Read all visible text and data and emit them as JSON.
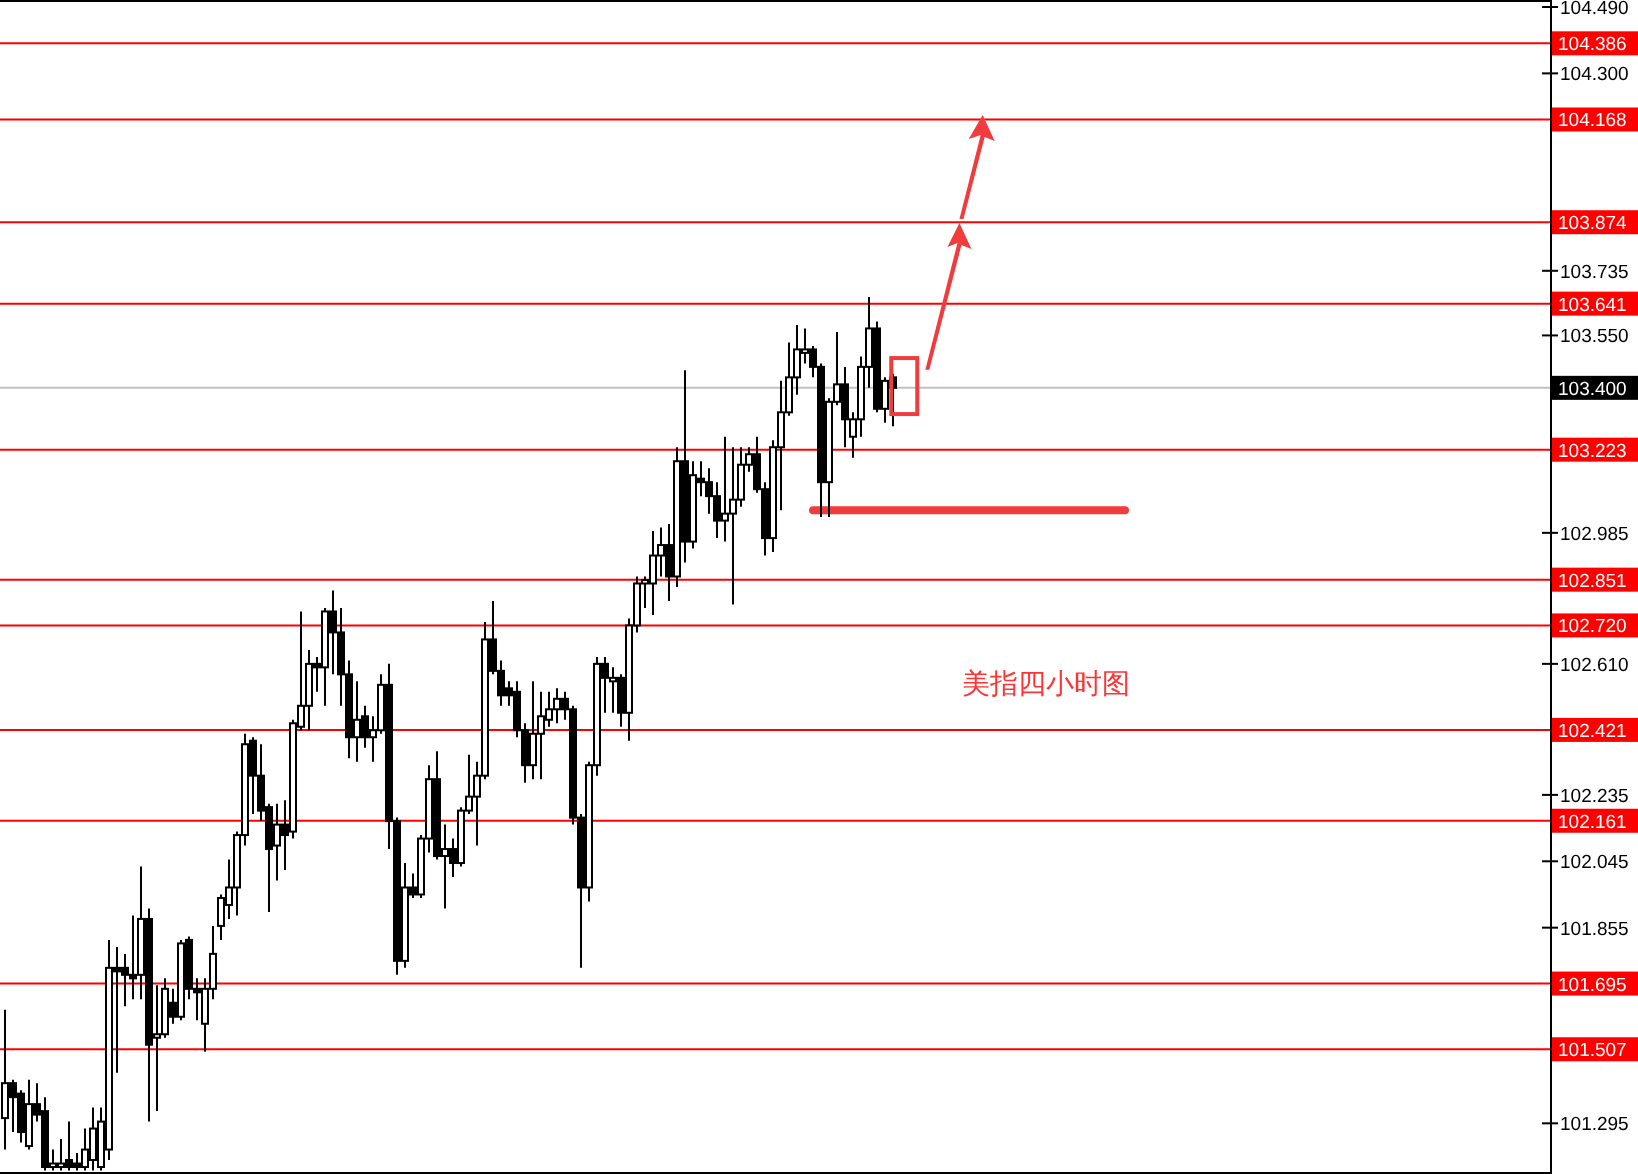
{
  "chart_data": {
    "type": "candlestick",
    "categories": [
      null,
      null,
      null,
      null,
      null,
      null,
      null,
      null,
      null,
      null,
      null,
      null,
      null,
      null,
      null,
      null,
      null,
      null,
      null,
      null,
      null,
      null,
      null,
      null,
      null,
      null,
      null,
      null,
      null,
      null,
      null,
      null,
      null,
      null,
      null,
      null,
      null,
      null,
      null,
      null,
      null,
      null,
      null,
      null,
      null,
      null,
      null,
      null,
      null,
      null,
      null,
      null,
      null,
      null,
      null,
      null,
      null,
      null,
      null,
      null,
      null,
      null,
      null,
      null,
      null,
      null,
      null,
      null,
      null,
      null,
      null,
      null,
      null,
      null,
      null,
      null,
      null,
      null,
      null,
      null,
      null,
      null,
      null,
      null,
      null,
      null,
      null,
      null,
      null,
      null,
      null,
      null,
      null,
      null,
      null,
      null,
      null,
      null,
      null,
      null,
      null,
      null,
      null,
      null,
      null,
      null,
      null,
      null,
      null,
      null,
      null,
      null,
      null,
      null,
      null,
      null,
      null,
      null,
      null,
      null,
      null,
      null,
      null,
      null,
      null,
      null,
      null,
      null,
      null,
      null,
      null,
      null,
      null,
      null,
      null,
      null,
      null,
      null,
      null,
      null,
      null
    ],
    "series": [
      {
        "type": "line",
        "color": "#f03c3c",
        "values": [
          null,
          null,
          null,
          null,
          null,
          null,
          null,
          null,
          null,
          null,
          null,
          null,
          null,
          null,
          null,
          null,
          null,
          null,
          null,
          null,
          null,
          null,
          null,
          null,
          null,
          null,
          null,
          null,
          null,
          null,
          null,
          null,
          null,
          null,
          null,
          null,
          null,
          null,
          null,
          null,
          null,
          null,
          null,
          null,
          null,
          null,
          null,
          null,
          null,
          null,
          null,
          null,
          null,
          null,
          null,
          null,
          null,
          null,
          null,
          null,
          null,
          null,
          null,
          null,
          null,
          null,
          null,
          null,
          null,
          null,
          null,
          null,
          null,
          null,
          null,
          null,
          null,
          null,
          null,
          null,
          null,
          null,
          null,
          null,
          null,
          null,
          null,
          null,
          null,
          null,
          null,
          null,
          null,
          null,
          null,
          null,
          null,
          null,
          null,
          null,
          null,
          103.05,
          103.05,
          103.05,
          103.05,
          103.05,
          103.05,
          103.05,
          103.05,
          103.05,
          103.05,
          103.05,
          103.05,
          103.05,
          103.05,
          103.05,
          103.05,
          103.05,
          103.05,
          103.05,
          103.05,
          103.05,
          103.05,
          103.05,
          103.05,
          103.05,
          103.05,
          103.05,
          103.05,
          103.05,
          103.05,
          103.05,
          103.05,
          103.05,
          103.05,
          103.05,
          103.05,
          103.05,
          103.05,
          103.05,
          103.05
        ]
      }
    ],
    "ohlc": [
      [
        101.31,
        101.62,
        101.22,
        101.41
      ],
      [
        101.41,
        101.42,
        101.27,
        101.37
      ],
      [
        101.38,
        101.39,
        101.24,
        101.27
      ],
      [
        101.23,
        101.42,
        101.22,
        101.35
      ],
      [
        101.35,
        101.41,
        101.3,
        101.32
      ],
      [
        101.33,
        101.37,
        101.16,
        101.17
      ],
      [
        101.17,
        101.22,
        101.16,
        101.18
      ],
      [
        101.17,
        101.25,
        101.16,
        101.18
      ],
      [
        101.19,
        101.3,
        101.16,
        101.17
      ],
      [
        101.18,
        101.21,
        101.16,
        101.17
      ],
      [
        101.17,
        101.28,
        101.16,
        101.22
      ],
      [
        101.19,
        101.34,
        101.16,
        101.28
      ],
      [
        101.17,
        101.34,
        101.16,
        101.3
      ],
      [
        101.22,
        101.82,
        101.19,
        101.74
      ],
      [
        101.74,
        101.8,
        101.44,
        101.73
      ],
      [
        101.74,
        101.78,
        101.63,
        101.72
      ],
      [
        101.72,
        101.89,
        101.65,
        101.71
      ],
      [
        101.72,
        102.03,
        101.65,
        101.88
      ],
      [
        101.88,
        101.91,
        101.3,
        101.52
      ],
      [
        101.54,
        101.69,
        101.33,
        101.55
      ],
      [
        101.55,
        101.71,
        101.54,
        101.68
      ],
      [
        101.64,
        101.68,
        101.58,
        101.6
      ],
      [
        101.6,
        101.82,
        101.59,
        101.81
      ],
      [
        101.82,
        101.83,
        101.65,
        101.68
      ],
      [
        101.68,
        101.71,
        101.59,
        101.67
      ],
      [
        101.58,
        101.71,
        101.5,
        101.68
      ],
      [
        101.68,
        101.86,
        101.65,
        101.78
      ],
      [
        101.86,
        101.95,
        101.82,
        101.94
      ],
      [
        101.92,
        102.05,
        101.88,
        101.97
      ],
      [
        101.97,
        102.13,
        101.89,
        102.12
      ],
      [
        102.12,
        102.41,
        102.09,
        102.38
      ],
      [
        102.39,
        102.4,
        102.18,
        102.29
      ],
      [
        102.29,
        102.38,
        102.16,
        102.19
      ],
      [
        102.2,
        102.21,
        101.9,
        102.08
      ],
      [
        102.09,
        102.21,
        101.99,
        102.15
      ],
      [
        102.15,
        102.22,
        102.02,
        102.12
      ],
      [
        102.13,
        102.45,
        102.11,
        102.44
      ],
      [
        102.43,
        102.76,
        102.42,
        102.49
      ],
      [
        102.49,
        102.65,
        102.42,
        102.61
      ],
      [
        102.61,
        102.63,
        102.53,
        102.6
      ],
      [
        102.6,
        102.77,
        102.49,
        102.76
      ],
      [
        102.76,
        102.82,
        102.58,
        102.7
      ],
      [
        102.7,
        102.77,
        102.49,
        102.58
      ],
      [
        102.58,
        102.62,
        102.34,
        102.4
      ],
      [
        102.4,
        102.56,
        102.33,
        102.45
      ],
      [
        102.46,
        102.49,
        102.37,
        102.4
      ],
      [
        102.4,
        102.46,
        102.33,
        102.42
      ],
      [
        102.42,
        102.58,
        102.41,
        102.55
      ],
      [
        102.55,
        102.61,
        102.08,
        102.16
      ],
      [
        102.16,
        102.17,
        101.72,
        101.76
      ],
      [
        101.76,
        102.04,
        101.74,
        101.97
      ],
      [
        101.97,
        102.01,
        101.94,
        101.95
      ],
      [
        101.95,
        102.12,
        101.94,
        102.11
      ],
      [
        102.11,
        102.32,
        102.07,
        102.28
      ],
      [
        102.28,
        102.36,
        102.05,
        102.06
      ],
      [
        102.06,
        102.15,
        101.91,
        102.08
      ],
      [
        102.08,
        102.11,
        102.0,
        102.04
      ],
      [
        102.04,
        102.2,
        102.03,
        102.19
      ],
      [
        102.19,
        102.35,
        102.18,
        102.23
      ],
      [
        102.23,
        102.33,
        102.09,
        102.29
      ],
      [
        102.29,
        102.73,
        102.28,
        102.68
      ],
      [
        102.68,
        102.79,
        102.58,
        102.59
      ],
      [
        102.59,
        102.62,
        102.49,
        102.52
      ],
      [
        102.54,
        102.56,
        102.49,
        102.52
      ],
      [
        102.53,
        102.56,
        102.4,
        102.42
      ],
      [
        102.42,
        102.44,
        102.27,
        102.32
      ],
      [
        102.32,
        102.56,
        102.28,
        102.41
      ],
      [
        102.41,
        102.53,
        102.28,
        102.46
      ],
      [
        102.45,
        102.53,
        102.43,
        102.48
      ],
      [
        102.48,
        102.54,
        102.44,
        102.51
      ],
      [
        102.51,
        102.53,
        102.45,
        102.48
      ],
      [
        102.48,
        102.49,
        102.15,
        102.17
      ],
      [
        102.17,
        102.18,
        101.74,
        101.97
      ],
      [
        101.97,
        102.33,
        101.93,
        102.32
      ],
      [
        102.32,
        102.63,
        102.29,
        102.61
      ],
      [
        102.61,
        102.63,
        102.47,
        102.57
      ],
      [
        102.56,
        102.6,
        102.47,
        102.57
      ],
      [
        102.57,
        102.58,
        102.43,
        102.47
      ],
      [
        102.47,
        102.74,
        102.39,
        102.72
      ],
      [
        102.72,
        102.86,
        102.7,
        102.84
      ],
      [
        102.84,
        102.86,
        102.77,
        102.85
      ],
      [
        102.84,
        102.99,
        102.75,
        102.92
      ],
      [
        102.92,
        103.0,
        102.86,
        102.95
      ],
      [
        102.95,
        103.01,
        102.79,
        102.86
      ],
      [
        102.86,
        103.23,
        102.83,
        103.19
      ],
      [
        103.19,
        103.45,
        102.9,
        102.96
      ],
      [
        102.96,
        103.19,
        102.94,
        103.15
      ],
      [
        103.14,
        103.19,
        103.09,
        103.13
      ],
      [
        103.13,
        103.17,
        103.04,
        103.09
      ],
      [
        103.09,
        103.13,
        102.97,
        103.02
      ],
      [
        103.02,
        103.26,
        102.96,
        103.04
      ],
      [
        103.04,
        103.23,
        102.78,
        103.08
      ],
      [
        103.08,
        103.23,
        103.06,
        103.18
      ],
      [
        103.18,
        103.23,
        103.16,
        103.21
      ],
      [
        103.21,
        103.26,
        103.1,
        103.11
      ],
      [
        103.11,
        103.13,
        102.92,
        102.97
      ],
      [
        102.97,
        103.25,
        102.93,
        103.23
      ],
      [
        103.23,
        103.42,
        103.05,
        103.33
      ],
      [
        103.33,
        103.53,
        103.32,
        103.43
      ],
      [
        103.43,
        103.58,
        103.38,
        103.51
      ],
      [
        103.5,
        103.57,
        103.47,
        103.51
      ],
      [
        103.51,
        103.52,
        103.43,
        103.46
      ],
      [
        103.46,
        103.47,
        103.03,
        103.13
      ],
      [
        103.13,
        103.37,
        103.03,
        103.36
      ],
      [
        103.36,
        103.56,
        103.35,
        103.41
      ],
      [
        103.41,
        103.46,
        103.23,
        103.31
      ],
      [
        103.26,
        103.33,
        103.2,
        103.31
      ],
      [
        103.31,
        103.49,
        103.26,
        103.46
      ],
      [
        103.46,
        103.66,
        103.4,
        103.57
      ],
      [
        103.57,
        103.59,
        103.33,
        103.34
      ],
      [
        103.34,
        103.43,
        103.3,
        103.42
      ],
      [
        103.43,
        103.44,
        103.29,
        103.4
      ],
      null,
      null,
      null,
      null,
      null,
      null,
      null,
      null,
      null,
      null,
      null,
      null,
      null,
      null,
      null,
      null,
      null,
      null,
      null,
      null,
      null,
      null,
      null,
      null,
      null,
      null,
      null,
      null,
      null
    ],
    "ylim": [
      101.15,
      104.51
    ],
    "yticks": [
      "104.490",
      "104.300",
      "103.735",
      "103.550",
      "102.985",
      "102.610",
      "102.235",
      "102.045",
      "101.855",
      "101.295"
    ],
    "tick_labels": "y",
    "grid": false,
    "ref_lines": [
      {
        "axis": "y",
        "value": 104.386,
        "label": "104.386",
        "color": "#ff0000"
      },
      {
        "axis": "y",
        "value": 104.168,
        "label": "104.168",
        "color": "#ff0000"
      },
      {
        "axis": "y",
        "value": 103.874,
        "label": "103.874",
        "color": "#ff0000"
      },
      {
        "axis": "y",
        "value": 103.641,
        "label": "103.641",
        "color": "#ff0000"
      },
      {
        "axis": "y",
        "value": 103.4,
        "label": "103.400",
        "color": "#c0c0c0"
      },
      {
        "axis": "y",
        "value": 103.223,
        "label": "103.223",
        "color": "#ff0000"
      },
      {
        "axis": "y",
        "value": 102.851,
        "label": "102.851",
        "color": "#ff0000"
      },
      {
        "axis": "y",
        "value": 102.72,
        "label": "102.720",
        "color": "#ff0000"
      },
      {
        "axis": "y",
        "value": 102.421,
        "label": "102.421",
        "color": "#ff0000"
      },
      {
        "axis": "y",
        "value": 102.161,
        "label": "102.161",
        "color": "#ff0000"
      },
      {
        "axis": "y",
        "value": 101.695,
        "label": "101.695",
        "color": "#ff0000"
      },
      {
        "axis": "y",
        "value": 101.507,
        "label": "101.507",
        "color": "#ff0000"
      }
    ],
    "annotations": [
      "美指四小时图"
    ]
  }
}
